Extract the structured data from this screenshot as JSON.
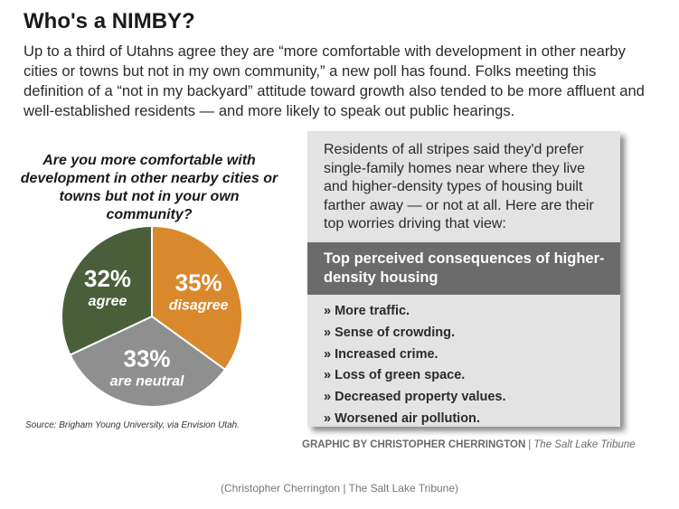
{
  "title": "Who's a NIMBY?",
  "intro": "Up to a third of Utahns agree they are “more comfortable with development in other nearby cities or towns but not in my own community,” a new poll has found. Folks meeting this definition of a “not in my backyard” attitude toward growth also tended to be more affluent and well-established residents — and more likely to speak out public hearings.",
  "chart_data": {
    "type": "pie",
    "title": "Are you more comfortable with development in other nearby cities or towns but not in your own community?",
    "slices": [
      {
        "label": "disagree",
        "value": 35,
        "display": "35%",
        "color": "#d9882c"
      },
      {
        "label": "are neutral",
        "value": 33,
        "display": "33%",
        "color": "#8f8f8f"
      },
      {
        "label": "agree",
        "value": 32,
        "display": "32%",
        "color": "#4a5e3a"
      }
    ]
  },
  "source": "Source: Brigham Young University, via Envision Utah.",
  "sidebar": {
    "intro": "Residents of all stripes said they'd prefer single-family homes near where they live and higher-density types of housing built farther away — or not at all. Here are their top worries driving that view:",
    "heading": "Top perceived consequences of higher-density housing",
    "items": [
      "» More traffic.",
      "» Sense of crowding.",
      "» Increased crime.",
      "» Loss of green space.",
      "» Decreased property values.",
      "» Worsened air pollution."
    ]
  },
  "credit": {
    "byline": "GRAPHIC BY CHRISTOPHER CHERRINGTON",
    "separator": "|",
    "publication": "The Salt Lake Tribune"
  },
  "caption": "(Christopher Cherrington | The Salt Lake Tribune)"
}
